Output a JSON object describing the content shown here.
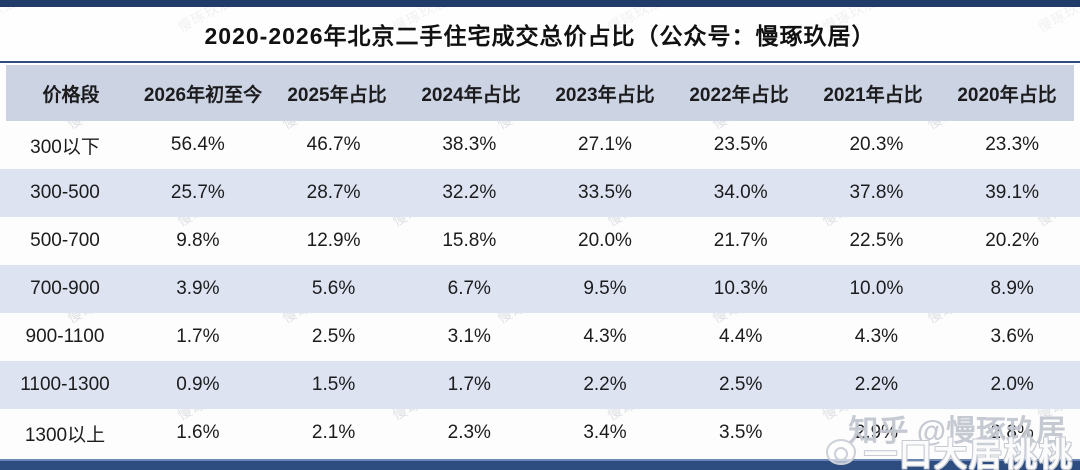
{
  "title": "2020-2026年北京二手住宅成交总价占比（公众号：慢琢玖居）",
  "watermark": {
    "tile_text": "慢琢玖居",
    "zhihu_text": "知乎 @慢琢玖居",
    "weibo_icon": "weibo-icon",
    "weibo_text": "一口大居桃桃"
  },
  "colors": {
    "navy_border": "#223c6a",
    "navy_bottom_bar": "#2d4d80",
    "header_bg": "#ccd3e3",
    "stripe_bg": "#dde3f1",
    "text": "#1c1c1e",
    "watermark_gray": "#9aa0ad"
  },
  "table": {
    "columns": [
      "价格段",
      "2026年初至今",
      "2025年占比",
      "2024年占比",
      "2023年占比",
      "2022年占比",
      "2021年占比",
      "2020年占比"
    ],
    "rows": [
      [
        "300以下",
        "56.4%",
        "46.7%",
        "38.3%",
        "27.1%",
        "23.5%",
        "20.3%",
        "23.3%"
      ],
      [
        "300-500",
        "25.7%",
        "28.7%",
        "32.2%",
        "33.5%",
        "34.0%",
        "37.8%",
        "39.1%"
      ],
      [
        "500-700",
        "9.8%",
        "12.9%",
        "15.8%",
        "20.0%",
        "21.7%",
        "22.5%",
        "20.2%"
      ],
      [
        "700-900",
        "3.9%",
        "5.6%",
        "6.7%",
        "9.5%",
        "10.3%",
        "10.0%",
        "8.9%"
      ],
      [
        "900-1100",
        "1.7%",
        "2.5%",
        "3.1%",
        "4.3%",
        "4.4%",
        "4.3%",
        "3.6%"
      ],
      [
        "1100-1300",
        "0.9%",
        "1.5%",
        "1.7%",
        "2.2%",
        "2.5%",
        "2.2%",
        "2.0%"
      ],
      [
        "1300以上",
        "1.6%",
        "2.1%",
        "2.3%",
        "3.4%",
        "3.5%",
        "2.9%",
        "2.8%"
      ]
    ]
  },
  "chart_data": {
    "type": "table",
    "title": "2020-2026年北京二手住宅成交总价占比（公众号：慢琢玖居）",
    "categories": [
      "300以下",
      "300-500",
      "500-700",
      "700-900",
      "900-1100",
      "1100-1300",
      "1300以上"
    ],
    "category_label": "价格段",
    "unit": "percent",
    "series": [
      {
        "name": "2026年初至今",
        "values": [
          56.4,
          25.7,
          9.8,
          3.9,
          1.7,
          0.9,
          1.6
        ]
      },
      {
        "name": "2025年占比",
        "values": [
          46.7,
          28.7,
          12.9,
          5.6,
          2.5,
          1.5,
          2.1
        ]
      },
      {
        "name": "2024年占比",
        "values": [
          38.3,
          32.2,
          15.8,
          6.7,
          3.1,
          1.7,
          2.3
        ]
      },
      {
        "name": "2023年占比",
        "values": [
          27.1,
          33.5,
          20.0,
          9.5,
          4.3,
          2.2,
          3.4
        ]
      },
      {
        "name": "2022年占比",
        "values": [
          23.5,
          34.0,
          21.7,
          10.3,
          4.4,
          2.5,
          3.5
        ]
      },
      {
        "name": "2021年占比",
        "values": [
          20.3,
          37.8,
          22.5,
          10.0,
          4.3,
          2.2,
          2.9
        ]
      },
      {
        "name": "2020年占比",
        "values": [
          23.3,
          39.1,
          20.2,
          8.9,
          3.6,
          2.0,
          2.8
        ]
      }
    ]
  }
}
